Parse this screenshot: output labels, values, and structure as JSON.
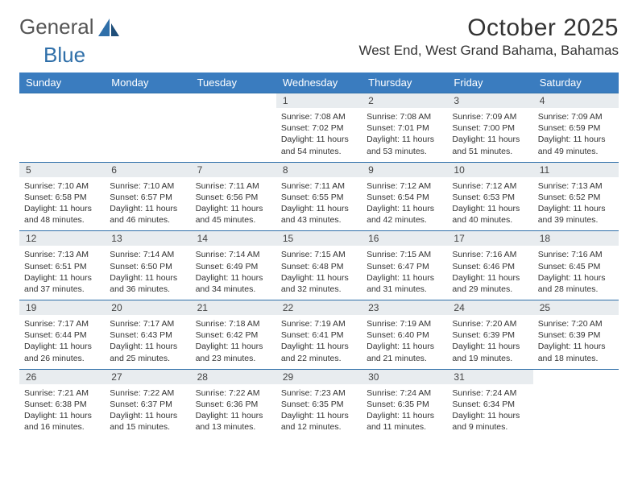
{
  "brand": {
    "part1": "General",
    "part2": "Blue"
  },
  "title": "October 2025",
  "location": "West End, West Grand Bahama, Bahamas",
  "header_bg": "#3a7cbf",
  "daynum_bg": "#e8ecef",
  "border_color": "#2f6fa9",
  "day_headers": [
    "Sunday",
    "Monday",
    "Tuesday",
    "Wednesday",
    "Thursday",
    "Friday",
    "Saturday"
  ],
  "weeks": [
    [
      null,
      null,
      null,
      {
        "n": "1",
        "sr": "7:08 AM",
        "ss": "7:02 PM",
        "dl": "11 hours and 54 minutes."
      },
      {
        "n": "2",
        "sr": "7:08 AM",
        "ss": "7:01 PM",
        "dl": "11 hours and 53 minutes."
      },
      {
        "n": "3",
        "sr": "7:09 AM",
        "ss": "7:00 PM",
        "dl": "11 hours and 51 minutes."
      },
      {
        "n": "4",
        "sr": "7:09 AM",
        "ss": "6:59 PM",
        "dl": "11 hours and 49 minutes."
      }
    ],
    [
      {
        "n": "5",
        "sr": "7:10 AM",
        "ss": "6:58 PM",
        "dl": "11 hours and 48 minutes."
      },
      {
        "n": "6",
        "sr": "7:10 AM",
        "ss": "6:57 PM",
        "dl": "11 hours and 46 minutes."
      },
      {
        "n": "7",
        "sr": "7:11 AM",
        "ss": "6:56 PM",
        "dl": "11 hours and 45 minutes."
      },
      {
        "n": "8",
        "sr": "7:11 AM",
        "ss": "6:55 PM",
        "dl": "11 hours and 43 minutes."
      },
      {
        "n": "9",
        "sr": "7:12 AM",
        "ss": "6:54 PM",
        "dl": "11 hours and 42 minutes."
      },
      {
        "n": "10",
        "sr": "7:12 AM",
        "ss": "6:53 PM",
        "dl": "11 hours and 40 minutes."
      },
      {
        "n": "11",
        "sr": "7:13 AM",
        "ss": "6:52 PM",
        "dl": "11 hours and 39 minutes."
      }
    ],
    [
      {
        "n": "12",
        "sr": "7:13 AM",
        "ss": "6:51 PM",
        "dl": "11 hours and 37 minutes."
      },
      {
        "n": "13",
        "sr": "7:14 AM",
        "ss": "6:50 PM",
        "dl": "11 hours and 36 minutes."
      },
      {
        "n": "14",
        "sr": "7:14 AM",
        "ss": "6:49 PM",
        "dl": "11 hours and 34 minutes."
      },
      {
        "n": "15",
        "sr": "7:15 AM",
        "ss": "6:48 PM",
        "dl": "11 hours and 32 minutes."
      },
      {
        "n": "16",
        "sr": "7:15 AM",
        "ss": "6:47 PM",
        "dl": "11 hours and 31 minutes."
      },
      {
        "n": "17",
        "sr": "7:16 AM",
        "ss": "6:46 PM",
        "dl": "11 hours and 29 minutes."
      },
      {
        "n": "18",
        "sr": "7:16 AM",
        "ss": "6:45 PM",
        "dl": "11 hours and 28 minutes."
      }
    ],
    [
      {
        "n": "19",
        "sr": "7:17 AM",
        "ss": "6:44 PM",
        "dl": "11 hours and 26 minutes."
      },
      {
        "n": "20",
        "sr": "7:17 AM",
        "ss": "6:43 PM",
        "dl": "11 hours and 25 minutes."
      },
      {
        "n": "21",
        "sr": "7:18 AM",
        "ss": "6:42 PM",
        "dl": "11 hours and 23 minutes."
      },
      {
        "n": "22",
        "sr": "7:19 AM",
        "ss": "6:41 PM",
        "dl": "11 hours and 22 minutes."
      },
      {
        "n": "23",
        "sr": "7:19 AM",
        "ss": "6:40 PM",
        "dl": "11 hours and 21 minutes."
      },
      {
        "n": "24",
        "sr": "7:20 AM",
        "ss": "6:39 PM",
        "dl": "11 hours and 19 minutes."
      },
      {
        "n": "25",
        "sr": "7:20 AM",
        "ss": "6:39 PM",
        "dl": "11 hours and 18 minutes."
      }
    ],
    [
      {
        "n": "26",
        "sr": "7:21 AM",
        "ss": "6:38 PM",
        "dl": "11 hours and 16 minutes."
      },
      {
        "n": "27",
        "sr": "7:22 AM",
        "ss": "6:37 PM",
        "dl": "11 hours and 15 minutes."
      },
      {
        "n": "28",
        "sr": "7:22 AM",
        "ss": "6:36 PM",
        "dl": "11 hours and 13 minutes."
      },
      {
        "n": "29",
        "sr": "7:23 AM",
        "ss": "6:35 PM",
        "dl": "11 hours and 12 minutes."
      },
      {
        "n": "30",
        "sr": "7:24 AM",
        "ss": "6:35 PM",
        "dl": "11 hours and 11 minutes."
      },
      {
        "n": "31",
        "sr": "7:24 AM",
        "ss": "6:34 PM",
        "dl": "11 hours and 9 minutes."
      },
      null
    ]
  ]
}
